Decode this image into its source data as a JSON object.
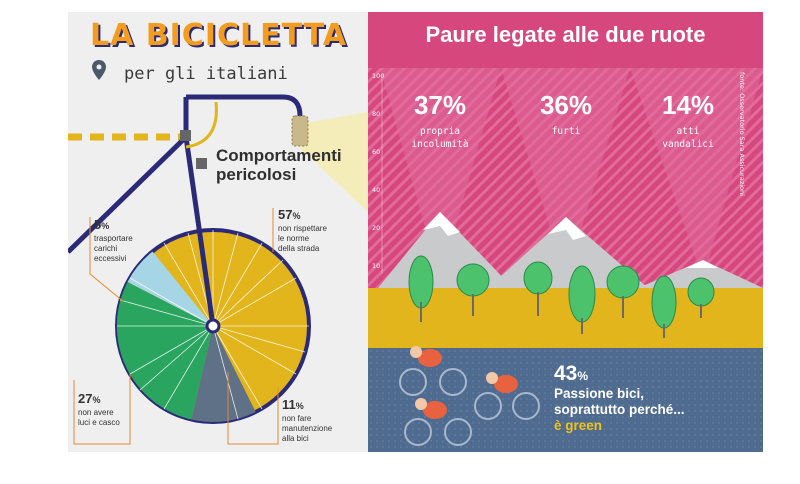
{
  "header": {
    "title": "LA BICICLETTA",
    "subtitle": "per gli italiani"
  },
  "left_panel": {
    "callout_title_line1": "Comportamenti",
    "callout_title_line2": "pericolosi",
    "stats": [
      {
        "value": "57",
        "unit": "%",
        "line1": "non rispettare",
        "line2": "le norme",
        "line3": "della strada"
      },
      {
        "value": "5",
        "unit": "%",
        "line1": "trasportare",
        "line2": "carichi",
        "line3": "eccessivi"
      },
      {
        "value": "27",
        "unit": "%",
        "line1": "non avere",
        "line2": "luci e casco"
      },
      {
        "value": "11",
        "unit": "%",
        "line1": "non fare",
        "line2": "manutenzione",
        "line3": "alla bici"
      }
    ]
  },
  "right_panel": {
    "title": "Paure legate alle due ruote",
    "fears": [
      {
        "value": "37%",
        "line1": "propria",
        "line2": "incolumità"
      },
      {
        "value": "36%",
        "line1": "furti"
      },
      {
        "value": "14%",
        "line1": "atti",
        "line2": "vandalici"
      }
    ],
    "axis_ticks": [
      "100",
      "80",
      "60",
      "40",
      "20",
      "10"
    ],
    "source": "fonte: Osservatorio Sara Assicurazioni",
    "passion_value": "43",
    "passion_unit": "%",
    "passion_line1": "Passione bici,",
    "passion_line2": "soprattutto perché...",
    "passion_line3": "è green"
  },
  "colors": {
    "orange": "#f39c1e",
    "navy": "#2b2a78",
    "yellow": "#e2b51c",
    "green": "#2aa55f",
    "light_blue": "#a6d6e6",
    "slate": "#5e7186",
    "pink": "#d6477e",
    "blue_ground": "#4f6b8f"
  }
}
